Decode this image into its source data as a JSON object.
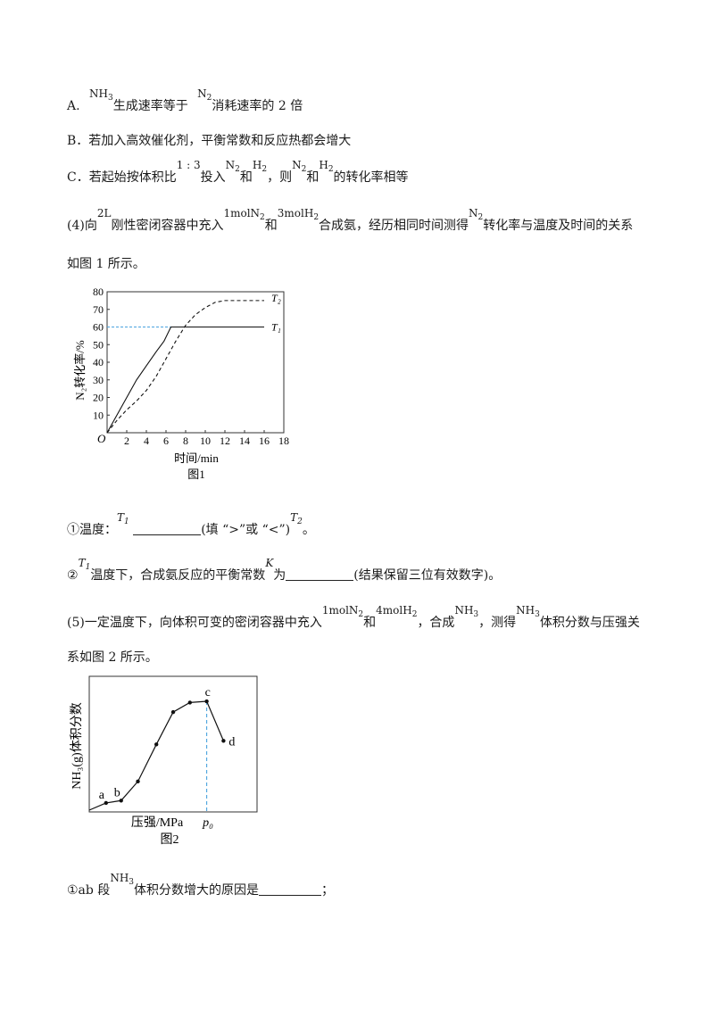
{
  "option_a": {
    "label": "A.",
    "nh3": "NH",
    "nh3_sub": "3",
    "t1": "生成速率等于",
    "n2": "N",
    "n2_sub": "2",
    "t2": "消耗速率的 2 倍"
  },
  "option_b": {
    "text": "B．若加入高效催化剂，平衡常数和反应热都会增大"
  },
  "option_c": {
    "label": "C．若起始按体积比",
    "ratio": "1 : 3",
    "t1": "投入",
    "n2": "N",
    "n2_sub": "2",
    "and": "和",
    "h2": "H",
    "h2_sub": "2",
    "t2": "，则",
    "t3": "的转化率相等"
  },
  "q4": {
    "line1_a": "(4)向",
    "vol": "2L",
    "line1_b": "刚性密闭容器中充入",
    "n2_amt": "1molN",
    "n2_sub": "2",
    "and": "和",
    "h2_amt": "3molH",
    "h2_sub": "2",
    "line1_c": "合成氨，经历相同时间测得",
    "n2": "N",
    "line1_d": "转化率与温度及时间的关系",
    "line2": "如图 1 所示。",
    "sub1_a": "①温度：",
    "T": "T",
    "sub_1": "1",
    "sub_2": "2",
    "sub1_b": "(填 “>”或 “<”)",
    "sub1_c": "。",
    "sub2_a": "②",
    "sub2_b": "温度下，合成氨反应的平衡常数",
    "K": "K",
    "sub2_c": "为",
    "sub2_d": "(结果保留三位有效数字)。"
  },
  "q5": {
    "line1_a": "(5)一定温度下，向体积可变的密闭容器中充入",
    "n2_amt": "1molN",
    "n2_sub": "2",
    "and": "和",
    "h2_amt": "4molH",
    "h2_sub": "2",
    "line1_b": "，合成",
    "nh3": "NH",
    "nh3_sub": "3",
    "line1_c": "，测得",
    "line1_d": "体积分数与压强关",
    "line2": "系如图 2 所示。",
    "sub1_a": "①ab 段",
    "sub1_b": "体积分数增大的原因是",
    "sub1_c": "；"
  },
  "chart_data": [
    {
      "type": "line",
      "title": "",
      "caption": "图1",
      "xlabel": "时间/min",
      "ylabel": "N₂转化率/%",
      "xlim": [
        0,
        18
      ],
      "ylim": [
        0,
        80
      ],
      "x_ticks": [
        "2",
        "4",
        "6",
        "8",
        "10",
        "12",
        "14",
        "16",
        "18"
      ],
      "y_ticks": [
        "10",
        "20",
        "30",
        "40",
        "50",
        "60",
        "70",
        "80"
      ],
      "origin_label": "O",
      "series": [
        {
          "name": "T₁",
          "style": "solid",
          "x": [
            0,
            1,
            2,
            3,
            4,
            5,
            5.8,
            6.5,
            8,
            10,
            12,
            14,
            16
          ],
          "y": [
            0,
            10,
            20,
            30,
            38,
            46,
            52,
            60,
            60,
            60,
            60,
            60,
            60
          ]
        },
        {
          "name": "T₂",
          "style": "dashed",
          "x": [
            0,
            1,
            2,
            3,
            4,
            5,
            6,
            7,
            8,
            9,
            10,
            11,
            12,
            14,
            16
          ],
          "y": [
            0,
            7,
            13,
            18,
            24,
            32,
            42,
            52,
            61,
            67,
            71,
            74,
            75,
            75,
            75
          ]
        }
      ],
      "reference_line": {
        "y": 60,
        "x_end": 8,
        "color": "#4aa3df"
      }
    },
    {
      "type": "line",
      "title": "",
      "caption": "图2",
      "xlabel": "压强/MPa",
      "ylabel": "NH₃(g)体积分数",
      "x_marker": "p₀",
      "points": [
        {
          "x": 0.0,
          "y": 0.0,
          "label": ""
        },
        {
          "x": 1.0,
          "y": 0.06,
          "label": "a"
        },
        {
          "x": 1.9,
          "y": 0.08,
          "label": "b"
        },
        {
          "x": 2.9,
          "y": 0.24,
          "label": ""
        },
        {
          "x": 4.0,
          "y": 0.55,
          "label": ""
        },
        {
          "x": 5.0,
          "y": 0.82,
          "label": ""
        },
        {
          "x": 6.0,
          "y": 0.9,
          "label": ""
        },
        {
          "x": 7.0,
          "y": 0.91,
          "label": "c"
        },
        {
          "x": 8.0,
          "y": 0.58,
          "label": "d"
        }
      ],
      "marker_x": 7.0,
      "marker_color": "#4aa3df"
    }
  ]
}
